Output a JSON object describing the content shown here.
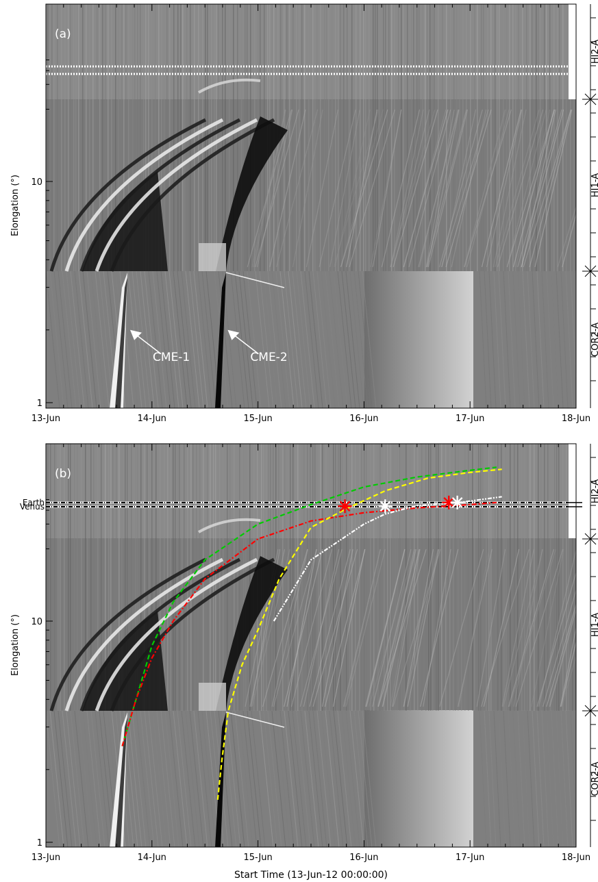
{
  "chart_data": [
    {
      "type": "heatmap",
      "panel_label": "(a)",
      "xlabel": "",
      "ylabel": "Elongation (°)",
      "x_range": [
        "13-Jun",
        "18-Jun"
      ],
      "x_ticks": [
        "13-Jun",
        "14-Jun",
        "15-Jun",
        "16-Jun",
        "17-Jun",
        "18-Jun"
      ],
      "y_ticks": [
        {
          "label": "1",
          "value": 1
        },
        {
          "label": "10",
          "value": 10
        }
      ],
      "y_scale": "log",
      "instruments": [
        "HI2-A",
        "HI1-A",
        "COR2-A"
      ],
      "annotations": [
        {
          "text": "CME-1",
          "day": 13.73,
          "elongation": 2.0
        },
        {
          "text": "CME-2",
          "day": 14.65,
          "elongation": 2.0
        }
      ]
    },
    {
      "type": "heatmap",
      "panel_label": "(b)",
      "xlabel": "Start Time (13-Jun-12 00:00:00)",
      "ylabel": "Elongation (°)",
      "x_range": [
        "13-Jun",
        "18-Jun"
      ],
      "x_ticks": [
        "13-Jun",
        "14-Jun",
        "15-Jun",
        "16-Jun",
        "17-Jun",
        "18-Jun"
      ],
      "y_ticks": [
        {
          "label": "1",
          "value": 1
        },
        {
          "label": "10",
          "value": 10
        }
      ],
      "y_scale": "log",
      "instruments": [
        "HI2-A",
        "HI1-A",
        "COR2-A"
      ],
      "reference_lines": [
        {
          "label": "Earth",
          "elongation": 47
        },
        {
          "label": "Venus",
          "elongation": 43
        }
      ],
      "tracks": [
        {
          "color": "#00cc00",
          "style": "dash",
          "points": [
            [
              13.72,
              2.5
            ],
            [
              13.85,
              4.0
            ],
            [
              14.0,
              7.5
            ],
            [
              14.2,
              12
            ],
            [
              14.5,
              18
            ],
            [
              15.0,
              30
            ],
            [
              15.5,
              45
            ],
            [
              16.0,
              65
            ],
            [
              16.5,
              80
            ],
            [
              17.0,
              92
            ],
            [
              17.25,
              98
            ]
          ]
        },
        {
          "color": "#ff0000",
          "style": "dash-dot",
          "points": [
            [
              13.72,
              2.5
            ],
            [
              13.85,
              4.0
            ],
            [
              14.0,
              6.5
            ],
            [
              14.2,
              10
            ],
            [
              14.5,
              15
            ],
            [
              15.0,
              22
            ],
            [
              15.5,
              32
            ],
            [
              16.0,
              38
            ],
            [
              16.5,
              42
            ],
            [
              17.0,
              45
            ],
            [
              17.25,
              47
            ]
          ]
        },
        {
          "color": "#ffff00",
          "style": "dash",
          "points": [
            [
              14.62,
              1.5
            ],
            [
              14.66,
              2.2
            ],
            [
              14.72,
              3.5
            ],
            [
              14.85,
              6.0
            ],
            [
              15.0,
              9.0
            ],
            [
              15.2,
              15
            ],
            [
              15.5,
              28
            ],
            [
              15.85,
              42
            ],
            [
              16.2,
              60
            ],
            [
              16.6,
              78
            ],
            [
              17.0,
              88
            ],
            [
              17.3,
              94
            ]
          ]
        },
        {
          "color": "#ffffff",
          "style": "dash-dot-dot",
          "points": [
            [
              15.15,
              10
            ],
            [
              15.5,
              18
            ],
            [
              16.0,
              30
            ],
            [
              16.2,
              37
            ],
            [
              16.5,
              44
            ],
            [
              16.9,
              47
            ],
            [
              17.3,
              53
            ]
          ]
        }
      ],
      "markers": [
        {
          "symbol": "star",
          "color": "#ff0000",
          "day": 15.82,
          "elongation": 43.5
        },
        {
          "symbol": "star",
          "color": "#ffffff",
          "day": 16.2,
          "elongation": 43.5
        },
        {
          "symbol": "star",
          "color": "#ff0000",
          "day": 16.8,
          "elongation": 47
        },
        {
          "symbol": "star",
          "color": "#ffffff",
          "day": 16.88,
          "elongation": 47
        }
      ]
    }
  ]
}
